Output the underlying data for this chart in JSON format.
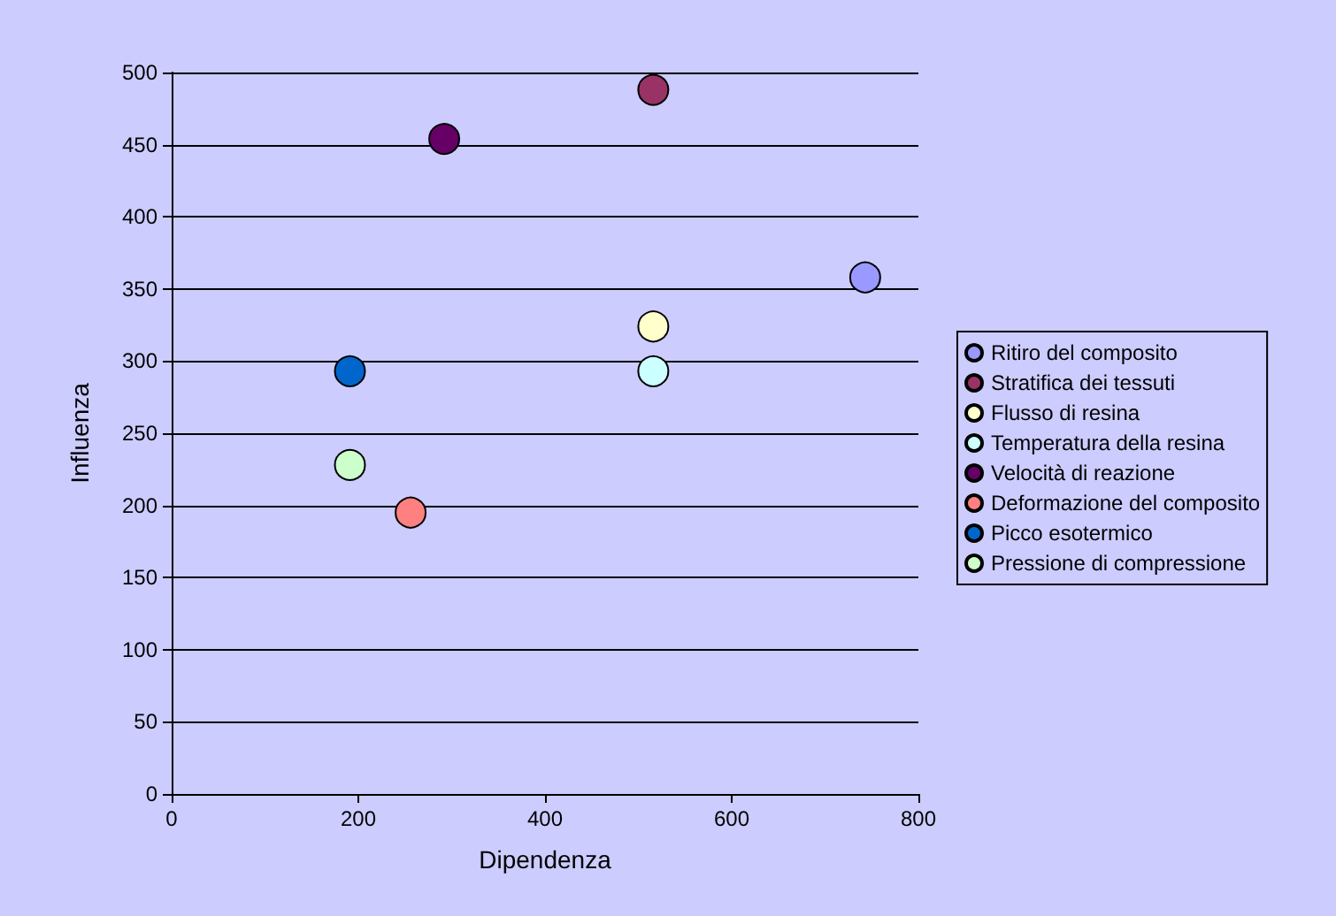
{
  "chart_data": {
    "type": "scatter",
    "xlabel": "Dipendenza",
    "ylabel": "Influenza",
    "xlim": [
      0,
      800
    ],
    "xticks": [
      0,
      200,
      400,
      600,
      800
    ],
    "ylim": [
      0,
      500
    ],
    "yticks": [
      0,
      50,
      100,
      150,
      200,
      250,
      300,
      350,
      400,
      450,
      500
    ],
    "grid": "y",
    "legend": "right",
    "marker": "circle",
    "series": [
      {
        "name": "Ritiro del composito",
        "color": "#9999ff",
        "x": [
          743
        ],
        "values": [
          358
        ]
      },
      {
        "name": "Stratifica dei tessuti",
        "color": "#993366",
        "x": [
          516
        ],
        "values": [
          488
        ]
      },
      {
        "name": "Flusso di resina",
        "color": "#ffffcc",
        "x": [
          516
        ],
        "values": [
          324
        ]
      },
      {
        "name": "Temperatura della resina",
        "color": "#ccffff",
        "x": [
          516
        ],
        "values": [
          293
        ]
      },
      {
        "name": "Velocità di reazione",
        "color": "#660066",
        "x": [
          292
        ],
        "values": [
          454
        ]
      },
      {
        "name": "Deformazione del composito",
        "color": "#ff8080",
        "x": [
          256
        ],
        "values": [
          195
        ]
      },
      {
        "name": "Picco esotermico",
        "color": "#0066cc",
        "x": [
          191
        ],
        "values": [
          293
        ]
      },
      {
        "name": "Pressione di compressione",
        "color": "#ccffcc",
        "x": [
          191
        ],
        "values": [
          228
        ]
      }
    ]
  }
}
